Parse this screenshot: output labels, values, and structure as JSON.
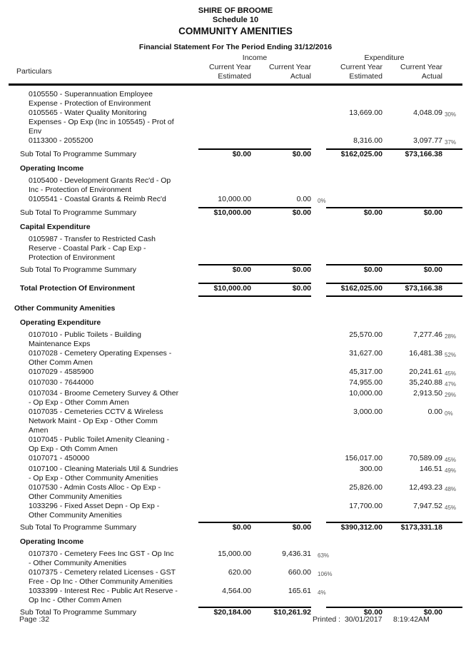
{
  "title_block": {
    "org": "SHIRE OF BROOME",
    "schedule": "Schedule 10",
    "department": "COMMUNITY AMENITIES",
    "statement": "Financial Statement For The Period Ending 31/12/2016"
  },
  "table_header": {
    "particulars": "Particulars",
    "income_group": "Income",
    "expenditure_group": "Expenditure",
    "estimated_col": "Current Year\nEstimated",
    "actual_col": "Current Year\nActual"
  },
  "rows": [
    {
      "type": "detail",
      "label": "0105550 - Superannuation Employee\nExpense - Protection of Environment",
      "inc_est": "",
      "inc_act": "",
      "inc_pct": "",
      "exp_est": "",
      "exp_act": "",
      "exp_pct": ""
    },
    {
      "type": "detail",
      "label": "0105565 - Water Quality Monitoring\nExpenses - Op Exp (Inc in 105545) - Prot of\nEnv",
      "inc_est": "",
      "inc_act": "",
      "inc_pct": "",
      "exp_est": "13,669.00",
      "exp_act": "4,048.09",
      "exp_pct": "30%"
    },
    {
      "type": "detail",
      "label": "0113300 - 2055200",
      "inc_est": "",
      "inc_act": "",
      "inc_pct": "",
      "exp_est": "8,316.00",
      "exp_act": "3,097.77",
      "exp_pct": "37%"
    },
    {
      "type": "subtotal",
      "label": "Sub Total To Programme Summary",
      "inc_est": "$0.00",
      "inc_act": "$0.00",
      "inc_pct": "",
      "exp_est": "$162,025.00",
      "exp_act": "$73,166.38",
      "exp_pct": ""
    },
    {
      "type": "section",
      "label": "Operating Income"
    },
    {
      "type": "detail",
      "label": "0105400 - Development Grants Rec'd - Op\nInc - Protection of Environment",
      "inc_est": "",
      "inc_act": "",
      "inc_pct": "",
      "exp_est": "",
      "exp_act": "",
      "exp_pct": ""
    },
    {
      "type": "detail",
      "label": "0105541 - Coastal Grants & Reimb Rec'd",
      "inc_est": "10,000.00",
      "inc_act": "0.00",
      "inc_pct": "0%",
      "exp_est": "",
      "exp_act": "",
      "exp_pct": ""
    },
    {
      "type": "subtotal",
      "label": "Sub Total To Programme Summary",
      "inc_est": "$10,000.00",
      "inc_act": "$0.00",
      "inc_pct": "",
      "exp_est": "$0.00",
      "exp_act": "$0.00",
      "exp_pct": ""
    },
    {
      "type": "section",
      "label": "Capital Expenditure"
    },
    {
      "type": "detail",
      "label": "0105987 - Transfer to Restricted Cash\nReserve - Coastal Park - Cap Exp -\nProtection of Environment",
      "inc_est": "",
      "inc_act": "",
      "inc_pct": "",
      "exp_est": "",
      "exp_act": "",
      "exp_pct": ""
    },
    {
      "type": "subtotal",
      "label": "Sub Total To Programme Summary",
      "inc_est": "$0.00",
      "inc_act": "$0.00",
      "inc_pct": "",
      "exp_est": "$0.00",
      "exp_act": "$0.00",
      "exp_pct": ""
    },
    {
      "type": "total",
      "label": "Total Protection Of Environment",
      "inc_est": "$10,000.00",
      "inc_act": "$0.00",
      "inc_pct": "",
      "exp_est": "$162,025.00",
      "exp_act": "$73,166.38",
      "exp_pct": ""
    },
    {
      "type": "section0",
      "label": "Other Community Amenities"
    },
    {
      "type": "section",
      "label": "Operating Expenditure"
    },
    {
      "type": "detail",
      "label": "0107010 - Public Toilets - Building\nMaintenance Exps",
      "inc_est": "",
      "inc_act": "",
      "inc_pct": "",
      "exp_est": "25,570.00",
      "exp_act": "7,277.46",
      "exp_pct": "28%"
    },
    {
      "type": "detail",
      "label": "0107028 - Cemetery Operating Expenses -\nOther Comm Amen",
      "inc_est": "",
      "inc_act": "",
      "inc_pct": "",
      "exp_est": "31,627.00",
      "exp_act": "16,481.38",
      "exp_pct": "52%"
    },
    {
      "type": "detail",
      "label": "0107029 - 4585900",
      "inc_est": "",
      "inc_act": "",
      "inc_pct": "",
      "exp_est": "45,317.00",
      "exp_act": "20,241.61",
      "exp_pct": "45%"
    },
    {
      "type": "detail",
      "label": "0107030 - 7644000",
      "inc_est": "",
      "inc_act": "",
      "inc_pct": "",
      "exp_est": "74,955.00",
      "exp_act": "35,240.88",
      "exp_pct": "47%"
    },
    {
      "type": "detail",
      "label": "0107034 - Broome Cemetery Survey & Other\n- Op Exp - Other Comm Amen",
      "inc_est": "",
      "inc_act": "",
      "inc_pct": "",
      "exp_est": "10,000.00",
      "exp_act": "2,913.50",
      "exp_pct": "29%"
    },
    {
      "type": "detail",
      "label": "0107035 - Cemeteries CCTV & Wireless\nNetwork Maint - Op Exp - Other Comm\nAmen",
      "inc_est": "",
      "inc_act": "",
      "inc_pct": "",
      "exp_est": "3,000.00",
      "exp_act": "0.00",
      "exp_pct": "0%"
    },
    {
      "type": "detail",
      "label": "0107045 - Public Toilet Amenity Cleaning -\nOp Exp - Oth Comm Amen",
      "inc_est": "",
      "inc_act": "",
      "inc_pct": "",
      "exp_est": "",
      "exp_act": "",
      "exp_pct": ""
    },
    {
      "type": "detail",
      "label": "0107071 - 450000",
      "inc_est": "",
      "inc_act": "",
      "inc_pct": "",
      "exp_est": "156,017.00",
      "exp_act": "70,589.09",
      "exp_pct": "45%"
    },
    {
      "type": "detail",
      "label": "0107100 - Cleaning Materials Util & Sundries\n- Op Exp - Other Community Amenities",
      "inc_est": "",
      "inc_act": "",
      "inc_pct": "",
      "exp_est": "300.00",
      "exp_act": "146.51",
      "exp_pct": "49%"
    },
    {
      "type": "detail",
      "label": "0107530 - Admin Costs Alloc - Op Exp -\nOther Community Amenities",
      "inc_est": "",
      "inc_act": "",
      "inc_pct": "",
      "exp_est": "25,826.00",
      "exp_act": "12,493.23",
      "exp_pct": "48%"
    },
    {
      "type": "detail",
      "label": "1033296 - Fixed Asset Depn - Op Exp -\nOther Community Amenities",
      "inc_est": "",
      "inc_act": "",
      "inc_pct": "",
      "exp_est": "17,700.00",
      "exp_act": "7,947.52",
      "exp_pct": "45%"
    },
    {
      "type": "subtotal",
      "label": "Sub Total To Programme Summary",
      "inc_est": "$0.00",
      "inc_act": "$0.00",
      "inc_pct": "",
      "exp_est": "$390,312.00",
      "exp_act": "$173,331.18",
      "exp_pct": ""
    },
    {
      "type": "section",
      "label": "Operating Income"
    },
    {
      "type": "detail",
      "label": "0107370 - Cemetery Fees Inc GST - Op Inc\n- Other Community Amenities",
      "inc_est": "15,000.00",
      "inc_act": "9,436.31",
      "inc_pct": "63%",
      "exp_est": "",
      "exp_act": "",
      "exp_pct": ""
    },
    {
      "type": "detail",
      "label": "0107375 - Cemetery related Licenses - GST\nFree - Op Inc - Other Community Amenities",
      "inc_est": "620.00",
      "inc_act": "660.00",
      "inc_pct": "106%",
      "exp_est": "",
      "exp_act": "",
      "exp_pct": ""
    },
    {
      "type": "detail",
      "label": "1033399 - Interest Rec - Public Art Reserve -\nOp Inc - Other Comm Amen",
      "inc_est": "4,564.00",
      "inc_act": "165.61",
      "inc_pct": "4%",
      "exp_est": "",
      "exp_act": "",
      "exp_pct": ""
    },
    {
      "type": "subtotal",
      "label": "Sub Total To Programme Summary",
      "inc_est": "$20,184.00",
      "inc_act": "$10,261.92",
      "inc_pct": "",
      "exp_est": "$0.00",
      "exp_act": "$0.00",
      "exp_pct": ""
    }
  ],
  "footer": {
    "page": "Page :32",
    "printed_label": "Printed :",
    "printed_date": "30/01/2017",
    "printed_time": "8:19:42AM"
  }
}
